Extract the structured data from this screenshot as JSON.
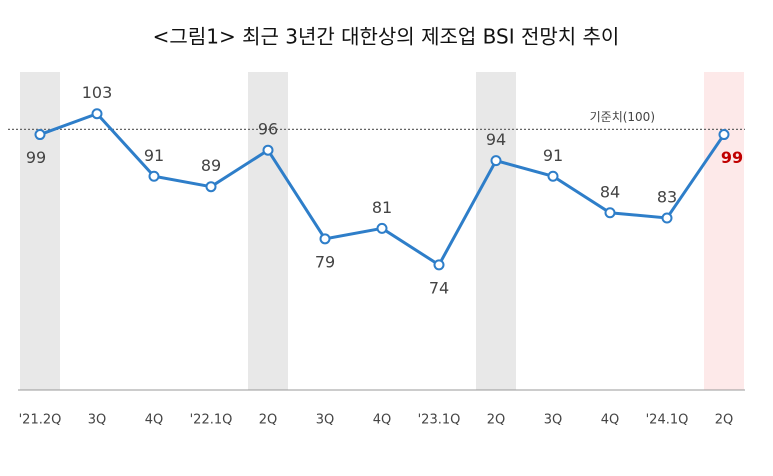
{
  "chart_data": {
    "type": "line",
    "title": "<그림1> 최근 3년간 대한상의 제조업 BSI 전망치 추이",
    "categories": [
      "'21.2Q",
      "3Q",
      "4Q",
      "'22.1Q",
      "2Q",
      "3Q",
      "4Q",
      "'23.1Q",
      "2Q",
      "3Q",
      "4Q",
      "'24.1Q",
      "2Q"
    ],
    "series": [
      {
        "name": "제조업 BSI 전망치",
        "color": "#2e7ec9",
        "values": [
          99,
          103,
          91,
          89,
          96,
          79,
          81,
          74,
          94,
          91,
          84,
          83,
          99
        ]
      }
    ],
    "ylim": [
      50,
      111
    ],
    "reference_line": {
      "value": 100,
      "label": "기준치(100)"
    },
    "highlight_color": "#c00000"
  }
}
